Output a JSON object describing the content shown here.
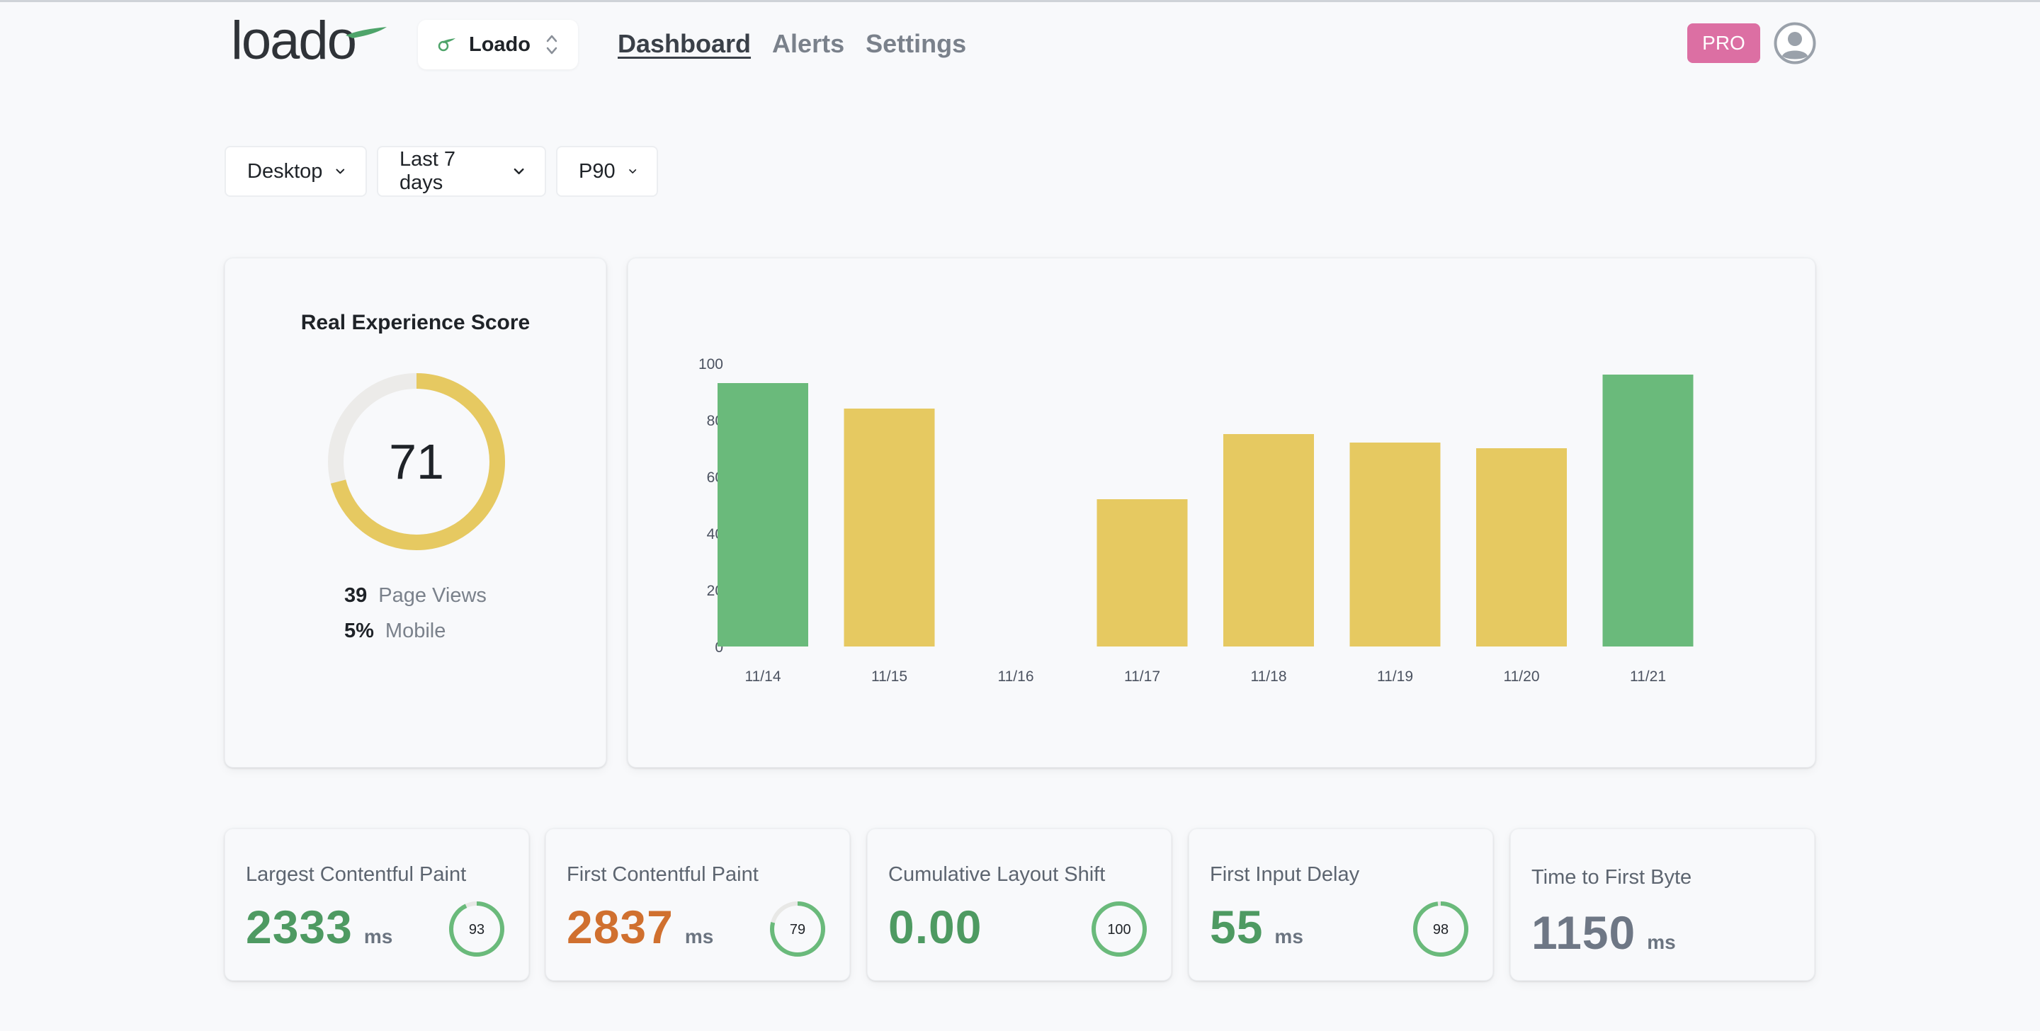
{
  "header": {
    "logo_text": "loado",
    "site_selector": {
      "label": "Loado"
    },
    "nav": [
      {
        "label": "Dashboard",
        "active": true
      },
      {
        "label": "Alerts",
        "active": false
      },
      {
        "label": "Settings",
        "active": false
      }
    ],
    "plan_badge": "PRO",
    "icons": {
      "avatar": "user-avatar-icon",
      "selector": "chevron-up-down-icon"
    }
  },
  "filters": [
    {
      "label": "Desktop"
    },
    {
      "label": "Last 7 days"
    },
    {
      "label": "P90"
    }
  ],
  "score_card": {
    "title": "Real Experience Score",
    "score": "71",
    "score_value": 71,
    "page_views": {
      "value": "39",
      "label": "Page Views"
    },
    "mobile": {
      "value": "5%",
      "label": "Mobile"
    },
    "colors": {
      "ring": "#e6c961",
      "track": "#ecebe9"
    }
  },
  "chart_data": {
    "type": "bar",
    "title": "",
    "xlabel": "",
    "ylabel": "",
    "categories": [
      "11/14",
      "11/15",
      "11/16",
      "11/17",
      "11/18",
      "11/19",
      "11/20",
      "11/21"
    ],
    "values": [
      93,
      84,
      null,
      52,
      75,
      72,
      70,
      96
    ],
    "ylim": [
      0,
      100
    ],
    "yticks": [
      0,
      20,
      40,
      60,
      80,
      100
    ],
    "grid": false,
    "colors": {
      "good": "#6aba7b",
      "needs_improvement": "#e6c961"
    },
    "good_threshold": 90
  },
  "metrics": [
    {
      "title": "Largest Contentful Paint",
      "value": "2333",
      "unit": "ms",
      "score": "93",
      "score_value": 93,
      "tone": "green"
    },
    {
      "title": "First Contentful Paint",
      "value": "2837",
      "unit": "ms",
      "score": "79",
      "score_value": 79,
      "tone": "orange"
    },
    {
      "title": "Cumulative Layout Shift",
      "value": "0.00",
      "unit": "",
      "score": "100",
      "score_value": 100,
      "tone": "green"
    },
    {
      "title": "First Input Delay",
      "value": "55",
      "unit": "ms",
      "score": "98",
      "score_value": 98,
      "tone": "green"
    },
    {
      "title": "Time to First Byte",
      "value": "1150",
      "unit": "ms",
      "score": "",
      "score_value": null,
      "tone": "gray"
    }
  ]
}
